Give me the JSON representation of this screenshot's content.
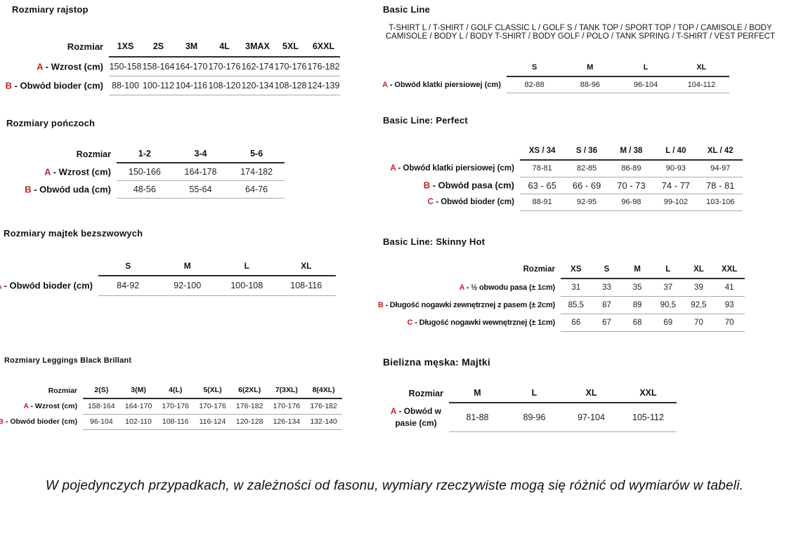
{
  "tables": [
    {
      "id": "rozmiary-rajstop",
      "title": "Rozmiary rajstop",
      "corner_label": "Rozmiar",
      "columns": [
        "1XS",
        "2S",
        "3M",
        "4L",
        "3MAX",
        "5XL",
        "6XXL"
      ],
      "rows": [
        {
          "letter": "A",
          "label": "- Wzrost (cm)",
          "values": [
            "150-158",
            "158-164",
            "164-170",
            "170-176",
            "162-174",
            "170-176",
            "176-182"
          ]
        },
        {
          "letter": "B",
          "label": "- Obwód bioder (cm)",
          "values": [
            "88-100",
            "100-112",
            "104-116",
            "108-120",
            "120-134",
            "108-128",
            "124-139"
          ]
        }
      ]
    },
    {
      "id": "rozmiary-ponczoch",
      "title": "Rozmiary pończoch",
      "corner_label": "Rozmiar",
      "columns": [
        "1-2",
        "3-4",
        "5-6"
      ],
      "rows": [
        {
          "letter": "A",
          "label": "- Wzrost (cm)",
          "values": [
            "150-166",
            "164-178",
            "174-182"
          ]
        },
        {
          "letter": "B",
          "label": "- Obwód uda (cm)",
          "values": [
            "48-56",
            "55-64",
            "64-76"
          ]
        }
      ]
    },
    {
      "id": "rozmiary-majtek-bezszwowych",
      "title": "Rozmiary majtek bezszwowych",
      "corner_label": "",
      "columns": [
        "S",
        "M",
        "L",
        "XL"
      ],
      "rows": [
        {
          "letter": "A",
          "label": "- Obwód bioder (cm)",
          "values": [
            "84-92",
            "92-100",
            "100-108",
            "108-116"
          ]
        }
      ]
    },
    {
      "id": "rozmiary-leggings-black-brillant",
      "title": "Rozmiary Leggings Black Brillant",
      "corner_label": "Rozmiar",
      "columns": [
        "2(S)",
        "3(M)",
        "4(L)",
        "5(XL)",
        "6(2XL)",
        "7(3XL)",
        "8(4XL)"
      ],
      "rows": [
        {
          "letter": "A",
          "label": "- Wzrost (cm)",
          "values": [
            "158-164",
            "164-170",
            "170-176",
            "170-176",
            "176-182",
            "170-176",
            "176-182"
          ]
        },
        {
          "letter": "B",
          "label": "- Obwód bioder (cm)",
          "values": [
            "96-104",
            "102-110",
            "108-116",
            "116-124",
            "120-128",
            "126-134",
            "132-140"
          ]
        }
      ]
    },
    {
      "id": "basic-line",
      "title": "Basic Line",
      "subtitle": "T-SHIRT L / T-SHIRT / GOLF CLASSIC L / GOLF S / TANK TOP / SPORT TOP / TOP / CAMISOLE / BODY CAMISOLE / BODY L / BODY T-SHIRT / BODY GOLF / POLO / TANK SPRING / T-SHIRT / VEST PERFECT",
      "corner_label": "",
      "columns": [
        "S",
        "M",
        "L",
        "XL"
      ],
      "rows": [
        {
          "letter": "A",
          "label": "- Obwód klatki piersiowej (cm)",
          "values": [
            "82-88",
            "88-96",
            "96-104",
            "104-112"
          ]
        }
      ]
    },
    {
      "id": "basic-line-perfect",
      "title": "Basic Line: Perfect",
      "corner_label": "",
      "columns": [
        "XS / 34",
        "S / 36",
        "M / 38",
        "L / 40",
        "XL / 42"
      ],
      "rows": [
        {
          "letter": "A",
          "label": "- Obwód klatki piersiowej (cm)",
          "values": [
            "78-81",
            "82-85",
            "86-89",
            "90-93",
            "94-97"
          ]
        },
        {
          "letter": "B",
          "label": "- Obwód pasa (cm)",
          "values": [
            "63 - 65",
            "66 - 69",
            "70 - 73",
            "74 - 77",
            "78 - 81"
          ]
        },
        {
          "letter": "C",
          "label": "- Obwód bioder (cm)",
          "values": [
            "88-91",
            "92-95",
            "96-98",
            "99-102",
            "103-106"
          ]
        }
      ]
    },
    {
      "id": "basic-line-skinny-hot",
      "title": "Basic Line: Skinny Hot",
      "corner_label": "Rozmiar",
      "columns": [
        "XS",
        "S",
        "M",
        "L",
        "XL",
        "XXL"
      ],
      "rows": [
        {
          "letter": "A",
          "label": "- ½ obwodu pasa (± 1cm)",
          "values": [
            "31",
            "33",
            "35",
            "37",
            "39",
            "41"
          ]
        },
        {
          "letter": "B",
          "label": "- Długość nogawki zewnętrznej z pasem (± 2cm)",
          "values": [
            "85,5",
            "87",
            "89",
            "90,5",
            "92,5",
            "93"
          ]
        },
        {
          "letter": "C",
          "label": "- Długość nogawki wewnętrznej (± 1cm)",
          "values": [
            "66",
            "67",
            "68",
            "69",
            "70",
            "70"
          ]
        }
      ]
    },
    {
      "id": "bielizna-meska-majtki",
      "title": "Bielizna męska: Majtki",
      "corner_label": "Rozmiar",
      "columns": [
        "M",
        "L",
        "XL",
        "XXL"
      ],
      "rows": [
        {
          "letter": "A",
          "label": "- Obwód w pasie (cm)",
          "values": [
            "81-88",
            "89-96",
            "97-104",
            "105-112"
          ]
        }
      ]
    }
  ],
  "footnote": "W pojedynczych przypadkach, w zależności od fasonu, wymiary rzeczywiste mogą się różnić od wymiarów w tabeli.",
  "colors": {
    "accent_red": "#c2202a",
    "text": "#1b1b1b",
    "rule_dark": "#2d2d2d",
    "rule_light": "#a8a8a8"
  }
}
